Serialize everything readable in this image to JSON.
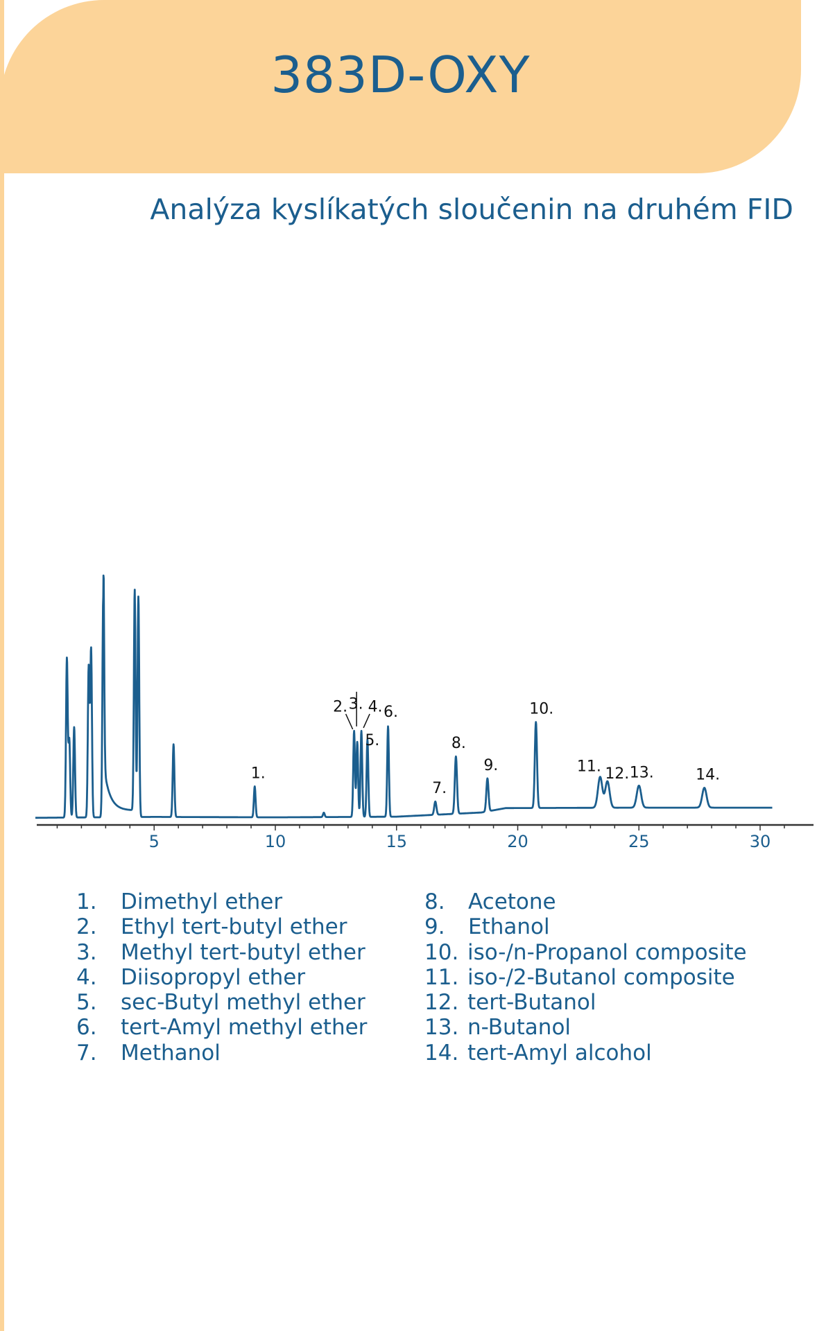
{
  "header": {
    "title": "383D-OXY"
  },
  "subtitle": "Analýza kyslíkatých sloučenin na druhém FID",
  "colors": {
    "header_bg": "#fcd499",
    "accent": "#1b5e8e"
  },
  "chart_data": {
    "type": "line",
    "title": "",
    "xlabel": "",
    "ylabel": "",
    "xlim": [
      0,
      32
    ],
    "x_ticks": [
      "5",
      "10",
      "15",
      "20",
      "25",
      "30"
    ],
    "grid": false,
    "series": [
      {
        "baseline": [
          [
            0.1,
            0.1
          ],
          [
            5,
            0.5
          ],
          [
            10,
            0.3
          ],
          [
            15,
            0.6
          ],
          [
            18.5,
            2.5
          ],
          [
            19.5,
            4.5
          ],
          [
            25,
            4.7
          ],
          [
            30.5,
            4.7
          ]
        ],
        "peaks": [
          {
            "x": 1.4,
            "height": 72,
            "label": ""
          },
          {
            "x": 1.5,
            "height": 35,
            "label": ""
          },
          {
            "x": 1.7,
            "height": 41,
            "label": ""
          },
          {
            "x": 2.3,
            "height": 68,
            "label": ""
          },
          {
            "x": 2.4,
            "height": 76,
            "label": ""
          },
          {
            "x": 2.9,
            "height": 100,
            "label": ""
          },
          {
            "x": 4.2,
            "height": 100,
            "label": ""
          },
          {
            "x": 4.35,
            "height": 100,
            "label": ""
          },
          {
            "x": 5.8,
            "height": 33,
            "label": ""
          },
          {
            "x": 9.15,
            "height": 14,
            "label": "1."
          },
          {
            "x": 12.0,
            "height": 2,
            "label": ""
          },
          {
            "x": 13.25,
            "height": 39,
            "label": "2."
          },
          {
            "x": 13.38,
            "height": 34,
            "label": "3."
          },
          {
            "x": 13.55,
            "height": 39,
            "label": "4."
          },
          {
            "x": 13.8,
            "height": 35,
            "label": "5."
          },
          {
            "x": 14.65,
            "height": 41,
            "label": "6."
          },
          {
            "x": 16.6,
            "height": 6,
            "label": "7."
          },
          {
            "x": 17.45,
            "height": 26,
            "label": "8."
          },
          {
            "x": 18.75,
            "height": 15,
            "label": "9."
          },
          {
            "x": 20.75,
            "height": 39,
            "label": "10."
          },
          {
            "x": 23.4,
            "height": 14,
            "label": "11."
          },
          {
            "x": 23.7,
            "height": 12,
            "label": "12."
          },
          {
            "x": 25.0,
            "height": 10,
            "label": "13."
          },
          {
            "x": 27.7,
            "height": 9,
            "label": "14."
          }
        ]
      }
    ]
  },
  "legend": {
    "left": [
      {
        "num": "1.",
        "name": "Dimethyl ether"
      },
      {
        "num": "2.",
        "name": "Ethyl tert-butyl ether"
      },
      {
        "num": "3.",
        "name": "Methyl tert-butyl ether"
      },
      {
        "num": "4.",
        "name": "Diisopropyl ether"
      },
      {
        "num": "5.",
        "name": "sec-Butyl methyl ether"
      },
      {
        "num": "6.",
        "name": "tert-Amyl methyl ether"
      },
      {
        "num": "7.",
        "name": "Methanol"
      }
    ],
    "right": [
      {
        "num": "8.",
        "name": "Acetone"
      },
      {
        "num": "9.",
        "name": "Ethanol"
      },
      {
        "num": "10.",
        "name": "iso-/n-Propanol composite"
      },
      {
        "num": "11.",
        "name": "iso-/2-Butanol composite"
      },
      {
        "num": "12.",
        "name": "tert-Butanol"
      },
      {
        "num": "13.",
        "name": "n-Butanol"
      },
      {
        "num": "14.",
        "name": "tert-Amyl alcohol"
      }
    ]
  }
}
